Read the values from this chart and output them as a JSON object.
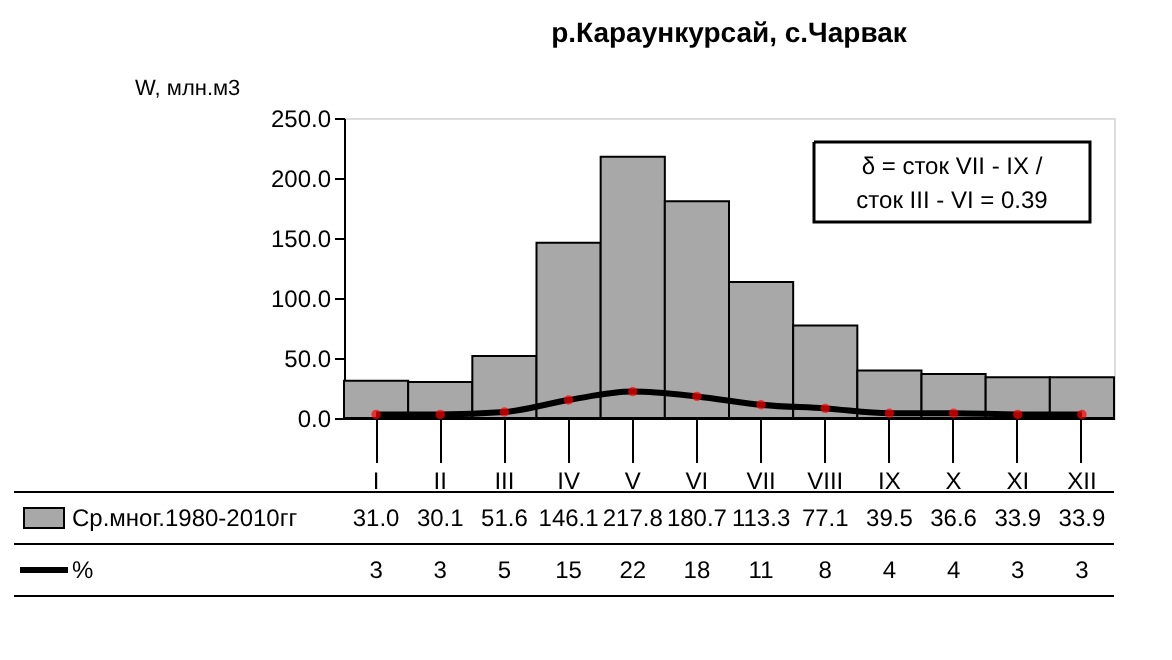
{
  "chart_data": {
    "type": "bar",
    "title": "р.Караункурсай, с.Чарвак",
    "ylabel": "W, млн.м3",
    "categories": [
      "I",
      "II",
      "III",
      "IV",
      "V",
      "VI",
      "VII",
      "VIII",
      "IX",
      "X",
      "XI",
      "XII"
    ],
    "series": [
      {
        "name": "Ср.мног.1980-2010гг",
        "color": "#a8a8a8",
        "values": [
          31.0,
          30.1,
          51.6,
          146.1,
          217.8,
          180.7,
          113.3,
          77.1,
          39.5,
          36.6,
          33.9,
          33.9
        ],
        "value_labels": [
          "31.0",
          "30.1",
          "51.6",
          "146.1",
          "217.8",
          "180.7",
          "113.3",
          "77.1",
          "39.5",
          "36.6",
          "33.9",
          "33.9"
        ]
      },
      {
        "name": "%",
        "type": "line",
        "color": "#000000",
        "marker": "circle",
        "values": [
          3,
          3,
          5,
          15,
          22,
          18,
          11,
          8,
          4,
          4,
          3,
          3
        ],
        "value_labels": [
          "3",
          "3",
          "5",
          "15",
          "22",
          "18",
          "11",
          "8",
          "4",
          "4",
          "3",
          "3"
        ]
      }
    ],
    "ylim": [
      0,
      250
    ],
    "yticks": [
      {
        "value": 0,
        "label": "0.0"
      },
      {
        "value": 50,
        "label": "50.0"
      },
      {
        "value": 100,
        "label": "100.0"
      },
      {
        "value": 150,
        "label": "150.0"
      },
      {
        "value": 200,
        "label": "200.0"
      },
      {
        "value": 250,
        "label": "250.0"
      }
    ],
    "annotations": [
      "δ = сток VII - IX / сток III - VI = 0.39"
    ],
    "legend": "bottom",
    "grid": false
  }
}
